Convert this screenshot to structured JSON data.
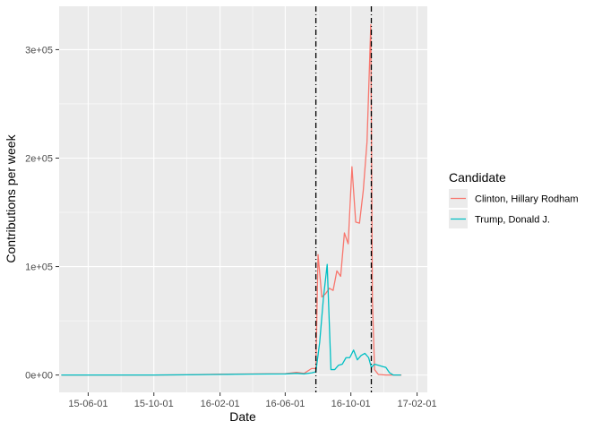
{
  "chart_data": {
    "type": "line",
    "xlabel": "Date",
    "ylabel": "Contributions per week",
    "x_axis_type": "date",
    "xlim": [
      "2015-04-08",
      "2017-02-20"
    ],
    "ylim": [
      -16000,
      340000
    ],
    "x_ticks": [
      {
        "date": "2015-06-01",
        "label": "15-06-01"
      },
      {
        "date": "2015-10-01",
        "label": "15-10-01"
      },
      {
        "date": "2016-02-01",
        "label": "16-02-01"
      },
      {
        "date": "2016-06-01",
        "label": "16-06-01"
      },
      {
        "date": "2016-10-01",
        "label": "16-10-01"
      },
      {
        "date": "2017-02-01",
        "label": "17-02-01"
      }
    ],
    "y_ticks": [
      {
        "value": 0,
        "label": "0e+00"
      },
      {
        "value": 100000,
        "label": "1e+05"
      },
      {
        "value": 200000,
        "label": "2e+05"
      },
      {
        "value": 300000,
        "label": "3e+05"
      }
    ],
    "grid": true,
    "background": "#ebebeb",
    "legend": {
      "title": "Candidate",
      "placement": "right"
    },
    "vlines": [
      {
        "date": "2016-07-28",
        "style": "dot-dash",
        "color": "#000000"
      },
      {
        "date": "2016-11-08",
        "style": "dot-dash",
        "color": "#000000"
      }
    ],
    "series": [
      {
        "name": "Clinton, Hillary Rodham",
        "color": "#f8766d",
        "points": [
          [
            "2015-04-12",
            0
          ],
          [
            "2015-06-01",
            0
          ],
          [
            "2015-08-01",
            0
          ],
          [
            "2015-10-01",
            0
          ],
          [
            "2015-12-01",
            200
          ],
          [
            "2016-02-01",
            800
          ],
          [
            "2016-04-01",
            1000
          ],
          [
            "2016-06-01",
            1200
          ],
          [
            "2016-06-22",
            2500
          ],
          [
            "2016-07-06",
            1500
          ],
          [
            "2016-07-20",
            6000
          ],
          [
            "2016-07-28",
            6000
          ],
          [
            "2016-08-01",
            111000
          ],
          [
            "2016-08-08",
            72000
          ],
          [
            "2016-08-15",
            75000
          ],
          [
            "2016-08-22",
            80000
          ],
          [
            "2016-08-29",
            78000
          ],
          [
            "2016-09-05",
            96000
          ],
          [
            "2016-09-12",
            91000
          ],
          [
            "2016-09-19",
            131000
          ],
          [
            "2016-09-26",
            121000
          ],
          [
            "2016-10-03",
            192000
          ],
          [
            "2016-10-10",
            141000
          ],
          [
            "2016-10-17",
            140000
          ],
          [
            "2016-10-24",
            170000
          ],
          [
            "2016-10-31",
            215000
          ],
          [
            "2016-11-07",
            323000
          ],
          [
            "2016-11-10",
            70000
          ],
          [
            "2016-11-14",
            5000
          ],
          [
            "2016-11-21",
            500
          ],
          [
            "2016-12-05",
            0
          ],
          [
            "2016-12-20",
            0
          ],
          [
            "2017-01-03",
            0
          ]
        ]
      },
      {
        "name": "Trump, Donald J.",
        "color": "#00bfc4",
        "points": [
          [
            "2015-04-12",
            0
          ],
          [
            "2015-06-01",
            0
          ],
          [
            "2015-08-01",
            0
          ],
          [
            "2015-10-01",
            0
          ],
          [
            "2015-12-01",
            200
          ],
          [
            "2016-02-01",
            500
          ],
          [
            "2016-04-01",
            800
          ],
          [
            "2016-06-01",
            1000
          ],
          [
            "2016-06-22",
            1500
          ],
          [
            "2016-07-06",
            1000
          ],
          [
            "2016-07-20",
            2000
          ],
          [
            "2016-07-28",
            3000
          ],
          [
            "2016-08-04",
            30000
          ],
          [
            "2016-08-11",
            71000
          ],
          [
            "2016-08-18",
            102000
          ],
          [
            "2016-08-25",
            5000
          ],
          [
            "2016-09-01",
            5000
          ],
          [
            "2016-09-08",
            9000
          ],
          [
            "2016-09-15",
            10000
          ],
          [
            "2016-09-22",
            16000
          ],
          [
            "2016-09-29",
            16000
          ],
          [
            "2016-10-06",
            23000
          ],
          [
            "2016-10-13",
            14000
          ],
          [
            "2016-10-20",
            18000
          ],
          [
            "2016-10-27",
            20000
          ],
          [
            "2016-11-03",
            16000
          ],
          [
            "2016-11-08",
            7000
          ],
          [
            "2016-11-14",
            10000
          ],
          [
            "2016-11-21",
            9000
          ],
          [
            "2016-11-28",
            8000
          ],
          [
            "2016-12-05",
            7000
          ],
          [
            "2016-12-12",
            2000
          ],
          [
            "2016-12-19",
            0
          ],
          [
            "2016-12-26",
            0
          ],
          [
            "2017-01-02",
            0
          ]
        ]
      }
    ]
  }
}
